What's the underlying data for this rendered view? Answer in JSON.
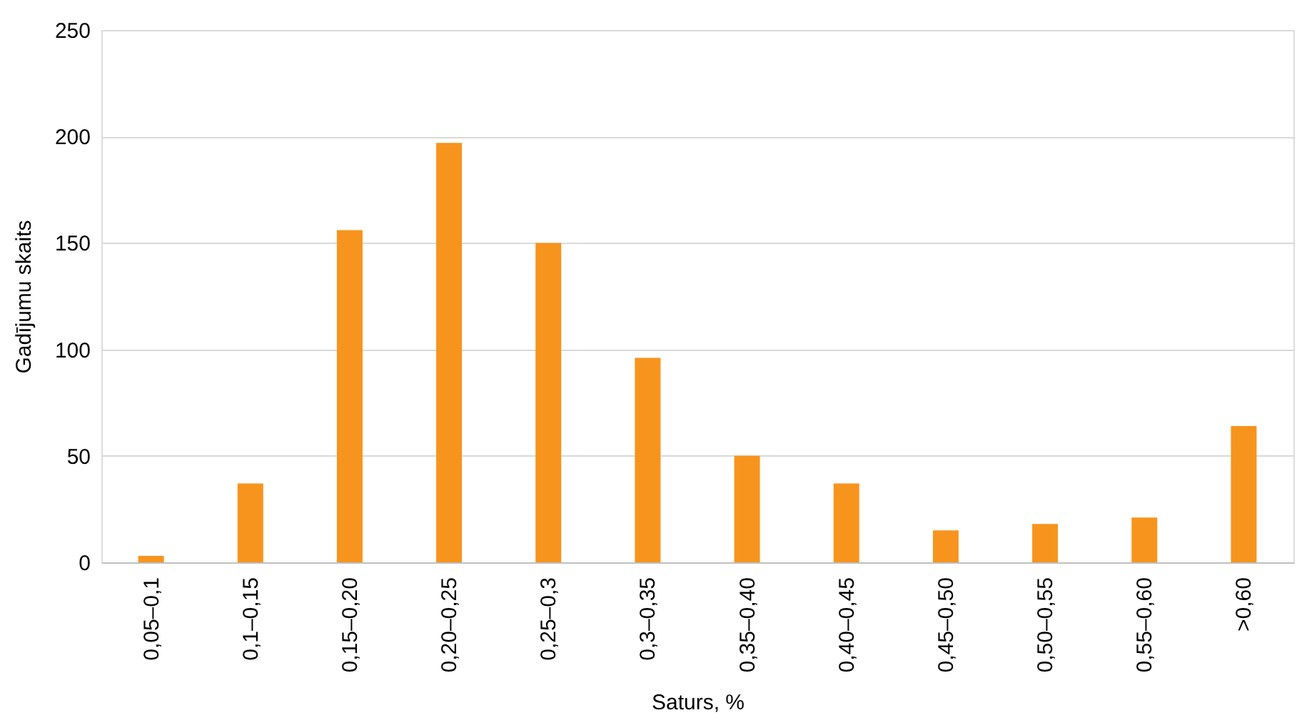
{
  "chart_data": {
    "type": "bar",
    "xlabel": "Saturs, %",
    "ylabel": "Gadījumu skaits",
    "categories": [
      "0,05–0,1",
      "0,1–0,15",
      "0,15–0,20",
      "0,20–0,25",
      "0,25–0,3",
      "0,3–0,35",
      "0,35–0,40",
      "0,40–0,45",
      "0,45–0,50",
      "0,50–0,55",
      "0,55–0,60",
      ">0,60"
    ],
    "values": [
      3,
      37,
      156,
      197,
      150,
      96,
      50,
      37,
      15,
      18,
      21,
      64
    ],
    "color": "#f7941d",
    "ylim": [
      0,
      250
    ],
    "yticks": [
      0,
      50,
      100,
      150,
      200,
      250
    ],
    "grid": "y"
  }
}
